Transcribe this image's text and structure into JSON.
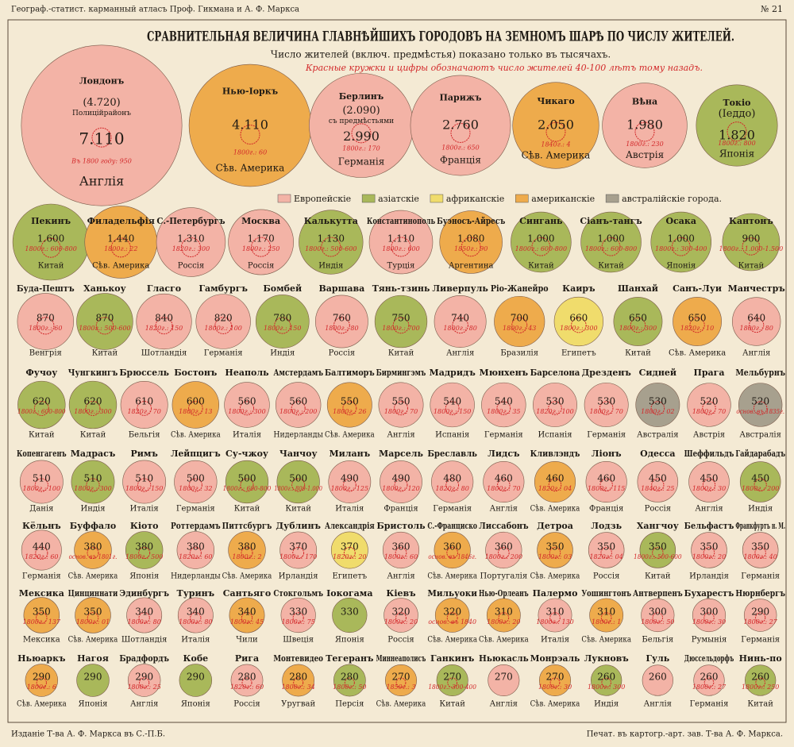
{
  "header": {
    "left": "Географ.-статист. карманный атласъ Проф. Гикмана и А. Ф. Маркса",
    "right": "№ 21",
    "title": "СРАВНИТЕЛЬНАЯ ВЕЛИЧИНА ГЛАВНѢЙШИХЪ ГОРОДОВЪ НА ЗЕМНОМЪ ШАРѢ ПО ЧИСЛУ ЖИТЕЛЕЙ.",
    "subtitle": "Число жителей (включ. предмѣстья) показано только въ тысячахъ.",
    "note": "Красные кружки и цифры обозначаютъ число жителей 40-100 лѣтъ тому назадъ."
  },
  "legend": [
    {
      "label": "Европейскiе",
      "color": "#f3b3a6"
    },
    {
      "label": "азiатскiе",
      "color": "#a9b85a"
    },
    {
      "label": "африканскiе",
      "color": "#f0dc6c"
    },
    {
      "label": "американскiе",
      "color": "#eeab4c"
    },
    {
      "label": "австралiйскiе города.",
      "color": "#a7a08e"
    }
  ],
  "rows": [
    [
      {
        "name": "Лондонъ",
        "pop": 7110,
        "pop_label": "7.110",
        "extra": [
          "(4.720)",
          "Полицiйрайонъ"
        ],
        "old": "Въ 1800 году: 950",
        "country": "Англiя",
        "group": 0
      },
      {
        "name": "Нью-Iоркъ",
        "pop": 4110,
        "pop_label": "4.110",
        "old": "1800г.: 60",
        "country": "Сѣв. Америка",
        "group": 3
      },
      {
        "name": "Берлинъ",
        "pop": 2990,
        "pop_label": "2.990",
        "extra": [
          "(2.090)",
          "съ предмѣстьями"
        ],
        "old": "1800г.: 170",
        "country": "Германiя",
        "group": 0
      },
      {
        "name": "Парижъ",
        "pop": 2760,
        "pop_label": "2.760",
        "old": "1800г.: 650",
        "country": "Францiя",
        "group": 0
      },
      {
        "name": "Чикаго",
        "pop": 2050,
        "pop_label": "2.050",
        "old": "1840г.: 4",
        "country": "Сѣв. Америка",
        "group": 3
      },
      {
        "name": "Вѣна",
        "pop": 1980,
        "pop_label": "1.980",
        "old": "1800г.: 230",
        "country": "Австрiя",
        "group": 0
      },
      {
        "name": "Токiо",
        "pop": 1820,
        "pop_label": "1.820",
        "extra": [
          "(Iеддо)"
        ],
        "old": "1800г.: 800",
        "country": "Японiя",
        "group": 1
      }
    ],
    [
      {
        "name": "Пекинъ",
        "pop": 1600,
        "pop_label": "1.600",
        "old": "1800г.: 600-800",
        "country": "Китай",
        "group": 1
      },
      {
        "name": "Филадельфiя",
        "pop": 1440,
        "pop_label": "1.440",
        "old": "1800г.: 22",
        "country": "Сѣв. Америка",
        "group": 3
      },
      {
        "name": "С.-Петербургъ",
        "pop": 1310,
        "pop_label": "1.310",
        "old": "1820г.: 300",
        "country": "Россiя",
        "group": 0
      },
      {
        "name": "Москва",
        "pop": 1170,
        "pop_label": "1.170",
        "old": "1800г.: 250",
        "country": "Россiя",
        "group": 0
      },
      {
        "name": "Калькутта",
        "pop": 1130,
        "pop_label": "1.130",
        "old": "1800г.: 500-600",
        "country": "Индiя",
        "group": 1
      },
      {
        "name": "Константинополь",
        "pop": 1110,
        "pop_label": "1.110",
        "old": "1800г.: 600",
        "country": "Турцiя",
        "group": 0
      },
      {
        "name": "Буэносъ-Айресъ",
        "pop": 1080,
        "pop_label": "1.080",
        "old": "1850г.: 90",
        "country": "Аргентина",
        "group": 3
      },
      {
        "name": "Сингань",
        "pop": 1000,
        "pop_label": "1.000",
        "old": "1800г.: 600-800",
        "country": "Китай",
        "group": 1
      },
      {
        "name": "Сiанъ-тангъ",
        "pop": 1000,
        "pop_label": "1.000",
        "old": "1800г.: 600-800",
        "country": "Китай",
        "group": 1
      },
      {
        "name": "Осака",
        "pop": 1000,
        "pop_label": "1.000",
        "old": "1800г.: 300-400",
        "country": "Японiя",
        "group": 1
      },
      {
        "name": "Кантонъ",
        "pop": 900,
        "old": "1800г.: 1.000-1.500",
        "country": "Китай",
        "group": 1
      }
    ],
    [
      {
        "name": "Буда-Пештъ",
        "pop": 870,
        "old": "1800г.: 60",
        "country": "Венгрiя",
        "group": 0
      },
      {
        "name": "Ханькоу",
        "pop": 870,
        "old": "1800г.: 500-600",
        "country": "Китай",
        "group": 1
      },
      {
        "name": "Гласго",
        "pop": 840,
        "old": "1820г.: 150",
        "country": "Шотландiя",
        "group": 0
      },
      {
        "name": "Гамбургъ",
        "pop": 820,
        "old": "1800г.: 100",
        "country": "Германiя",
        "group": 0
      },
      {
        "name": "Бомбей",
        "pop": 780,
        "old": "1800г.: 150",
        "country": "Индiя",
        "group": 1
      },
      {
        "name": "Варшава",
        "pop": 760,
        "old": "1800г.: 80",
        "country": "Россiя",
        "group": 0
      },
      {
        "name": "Тянь-тзинь",
        "pop": 750,
        "old": "1800г.: 700",
        "country": "Китай",
        "group": 1
      },
      {
        "name": "Ливерпуль",
        "pop": 740,
        "old": "1800г.: 80",
        "country": "Англiя",
        "group": 0
      },
      {
        "name": "Рiо-Жанейро",
        "pop": 700,
        "old": "1800г.: 43",
        "country": "Бразилiя",
        "group": 3
      },
      {
        "name": "Каиръ",
        "pop": 660,
        "old": "1800г.: 300",
        "country": "Египетъ",
        "group": 2
      },
      {
        "name": "Шанхай",
        "pop": 650,
        "old": "1800г.: 300",
        "country": "Китай",
        "group": 1
      },
      {
        "name": "Санъ-Луи",
        "pop": 650,
        "old": "1820г.: 10",
        "country": "Сѣв. Америка",
        "group": 3
      },
      {
        "name": "Манчестръ",
        "pop": 640,
        "old": "1800г.: 80",
        "country": "Англiя",
        "group": 0
      }
    ],
    [
      {
        "name": "Фучоу",
        "pop": 620,
        "old": "1800г.: 600-800",
        "country": "Китай",
        "group": 1
      },
      {
        "name": "Чунгкингъ",
        "pop": 620,
        "old": "1800г.: 300",
        "country": "Китай",
        "group": 1
      },
      {
        "name": "Брюссель",
        "pop": 610,
        "old": "1820г.: 70",
        "country": "Бельгiя",
        "group": 0
      },
      {
        "name": "Бостонъ",
        "pop": 600,
        "old": "1800г.: 13",
        "country": "Сѣв. Америка",
        "group": 3
      },
      {
        "name": "Неаполь",
        "pop": 560,
        "old": "1800г.: 300",
        "country": "Италiя",
        "group": 0
      },
      {
        "name": "Амстердамъ",
        "pop": 560,
        "old": "1800г.: 200",
        "country": "Нидерланды",
        "group": 0
      },
      {
        "name": "Балтиморъ",
        "pop": 550,
        "old": "1800г.: 26",
        "country": "Сѣв. Америка",
        "group": 3
      },
      {
        "name": "Бирмингэмъ",
        "pop": 550,
        "old": "1800г.: 70",
        "country": "Англiя",
        "group": 0
      },
      {
        "name": "Мадридъ",
        "pop": 540,
        "old": "1800г.: 150",
        "country": "Испанiя",
        "group": 0
      },
      {
        "name": "Мюнхенъ",
        "pop": 540,
        "old": "1800г.: 35",
        "country": "Германiя",
        "group": 0
      },
      {
        "name": "Барселона",
        "pop": 530,
        "old": "1820г.: 100",
        "country": "Испанiя",
        "group": 0
      },
      {
        "name": "Дрезденъ",
        "pop": 530,
        "old": "1800г.: 70",
        "country": "Германiя",
        "group": 0
      },
      {
        "name": "Сидней",
        "pop": 530,
        "old": "1800г.: 02",
        "country": "Австралiя",
        "group": 4
      },
      {
        "name": "Прага",
        "pop": 520,
        "old": "1800г.: 70",
        "country": "Австрiя",
        "group": 0
      },
      {
        "name": "Мельбурнъ",
        "pop": 520,
        "old": "основ. въ 1835г.",
        "country": "Австралiя",
        "group": 4
      }
    ],
    [
      {
        "name": "Копенгагенъ",
        "pop": 510,
        "old": "1800г.: 100",
        "country": "Данiя",
        "group": 0
      },
      {
        "name": "Мадрасъ",
        "pop": 510,
        "old": "1800г.: 300",
        "country": "Индiя",
        "group": 1
      },
      {
        "name": "Римъ",
        "pop": 510,
        "old": "1800г.: 150",
        "country": "Италiя",
        "group": 0
      },
      {
        "name": "Лейпцигъ",
        "pop": 500,
        "old": "1800г.: 32",
        "country": "Германiя",
        "group": 0
      },
      {
        "name": "Су-чжоу",
        "pop": 500,
        "old": "1800г.: 600-800",
        "country": "Китай",
        "group": 1
      },
      {
        "name": "Чанчоу",
        "pop": 500,
        "old": "1800г.: 800-1.000",
        "country": "Китай",
        "group": 1
      },
      {
        "name": "Миланъ",
        "pop": 490,
        "old": "1800г.: 125",
        "country": "Италiя",
        "group": 0
      },
      {
        "name": "Марсель",
        "pop": 490,
        "old": "1800г.: 120",
        "country": "Францiя",
        "group": 0
      },
      {
        "name": "Бреславль",
        "pop": 480,
        "old": "1820г.: 80",
        "country": "Германiя",
        "group": 0
      },
      {
        "name": "Лидсъ",
        "pop": 460,
        "old": "1800г.: 70",
        "country": "Англiя",
        "group": 0
      },
      {
        "name": "Кливлэндъ",
        "pop": 460,
        "old": "1820г.: 04",
        "country": "Сѣв. Америка",
        "group": 3
      },
      {
        "name": "Лiонъ",
        "pop": 460,
        "old": "1800г.: 115",
        "country": "Францiя",
        "group": 0
      },
      {
        "name": "Одесса",
        "pop": 450,
        "old": "1840г.: 25",
        "country": "Россiя",
        "group": 0
      },
      {
        "name": "Шеффильдъ",
        "pop": 450,
        "old": "1800г.: 30",
        "country": "Англiя",
        "group": 0
      },
      {
        "name": "Гайдарабадъ",
        "pop": 450,
        "old": "1800г.: 200",
        "country": "Индiя",
        "group": 1
      }
    ],
    [
      {
        "name": "Кёльнъ",
        "pop": 440,
        "old": "1820г.: 60",
        "country": "Германiя",
        "group": 0
      },
      {
        "name": "Буффало",
        "pop": 380,
        "old": "основ. въ 1801г.",
        "country": "Сѣв. Америка",
        "group": 3
      },
      {
        "name": "Кiото",
        "pop": 380,
        "old": "1800г.: 500",
        "country": "Японiя",
        "group": 1
      },
      {
        "name": "Роттердамъ",
        "pop": 380,
        "old": "1820г.: 60",
        "country": "Нидерланды",
        "group": 0
      },
      {
        "name": "Питтсбургъ",
        "pop": 380,
        "old": "1800г.: 2",
        "country": "Сѣв. Америка",
        "group": 3
      },
      {
        "name": "Дублинъ",
        "pop": 370,
        "old": "1800г.: 170",
        "country": "Ирландiя",
        "group": 0
      },
      {
        "name": "Александрiя",
        "pop": 370,
        "old": "1820г.: 20",
        "country": "Египетъ",
        "group": 2
      },
      {
        "name": "Бристоль",
        "pop": 360,
        "old": "1800г.: 60",
        "country": "Англiя",
        "group": 0
      },
      {
        "name": "С.-Франциско",
        "pop": 360,
        "old": "основ. въ 1846г.",
        "country": "Сѣв. Америка",
        "group": 3
      },
      {
        "name": "Лиссабонъ",
        "pop": 360,
        "old": "1800г.: 200",
        "country": "Португалiя",
        "group": 0
      },
      {
        "name": "Детроа",
        "pop": 350,
        "old": "1800г.: 03",
        "country": "Сѣв. Америка",
        "group": 3
      },
      {
        "name": "Лодзь",
        "pop": 350,
        "old": "1820г.: 04",
        "country": "Россiя",
        "group": 0
      },
      {
        "name": "Хангчоу",
        "pop": 350,
        "old": "1800г.: 500-600",
        "country": "Китай",
        "group": 1
      },
      {
        "name": "Бельфастъ",
        "pop": 350,
        "old": "1800г.: 20",
        "country": "Ирландiя",
        "group": 0
      },
      {
        "name": "Франкфуртъ н. М.",
        "pop": 350,
        "old": "1800г.: 40",
        "country": "Германiя",
        "group": 0
      }
    ],
    [
      {
        "name": "Мексика",
        "pop": 350,
        "old": "1800г.: 137",
        "country": "Мексика",
        "group": 3
      },
      {
        "name": "Цинциннати",
        "pop": 350,
        "old": "1800г.: 01",
        "country": "Сѣв. Америка",
        "group": 3
      },
      {
        "name": "Эдинбургъ",
        "pop": 340,
        "old": "1800г.: 80",
        "country": "Шотландiя",
        "group": 0
      },
      {
        "name": "Туринъ",
        "pop": 340,
        "old": "1800г.: 80",
        "country": "Италiя",
        "group": 0
      },
      {
        "name": "Сантьяго",
        "pop": 340,
        "old": "1800г.: 45",
        "country": "Чили",
        "group": 3
      },
      {
        "name": "Стокгольмъ",
        "pop": 330,
        "old": "1800г.: 75",
        "country": "Швецiя",
        "group": 0
      },
      {
        "name": "Iокогама",
        "pop": 330,
        "country": "Японiя",
        "group": 1
      },
      {
        "name": "Кiевъ",
        "pop": 320,
        "old": "1800г.: 20",
        "country": "Россiя",
        "group": 0
      },
      {
        "name": "Мильуоки",
        "pop": 320,
        "old": "основ. въ 1840",
        "country": "Сѣв. Америка",
        "group": 3
      },
      {
        "name": "Нью-Орлеанъ",
        "pop": 310,
        "old": "1800г.: 20",
        "country": "Сѣв. Америка",
        "group": 3
      },
      {
        "name": "Палермо",
        "pop": 310,
        "old": "1800г.: 130",
        "country": "Италiя",
        "group": 0
      },
      {
        "name": "Уошингтонъ",
        "pop": 310,
        "old": "1800г.: 1",
        "country": "Сѣв. Америка",
        "group": 3
      },
      {
        "name": "Антверпенъ",
        "pop": 300,
        "old": "1800г.: 50",
        "country": "Бельгiя",
        "group": 0
      },
      {
        "name": "Бухарестъ",
        "pop": 300,
        "old": "1800г.: 30",
        "country": "Румынiя",
        "group": 0
      },
      {
        "name": "Нюрнбергъ",
        "pop": 290,
        "old": "1800г.: 27",
        "country": "Германiя",
        "group": 0
      }
    ],
    [
      {
        "name": "Ньюаркъ",
        "pop": 290,
        "old": "1800г.: 6",
        "country": "Сѣв. Америка",
        "group": 3
      },
      {
        "name": "Нагоя",
        "pop": 290,
        "country": "Японiя",
        "group": 1
      },
      {
        "name": "Брадфордъ",
        "pop": 290,
        "old": "1800г.: 25",
        "country": "Англiя",
        "group": 0
      },
      {
        "name": "Кобе",
        "pop": 290,
        "country": "Японiя",
        "group": 1
      },
      {
        "name": "Рига",
        "pop": 280,
        "old": "1820г.: 60",
        "country": "Россiя",
        "group": 0
      },
      {
        "name": "Монтевидео",
        "pop": 280,
        "old": "1800г.: 34",
        "country": "Уругвай",
        "group": 3
      },
      {
        "name": "Тегеранъ",
        "pop": 280,
        "old": "1800г.: 50",
        "country": "Персiя",
        "group": 1
      },
      {
        "name": "Миннеаполисъ",
        "pop": 270,
        "old": "1850г.: 3",
        "country": "Сѣв. Америка",
        "group": 3
      },
      {
        "name": "Ганкинъ",
        "pop": 270,
        "old": "1800г.: 300-400",
        "country": "Китай",
        "group": 1
      },
      {
        "name": "Ньюкасль",
        "pop": 270,
        "country": "Англiя",
        "group": 0
      },
      {
        "name": "Монрэаль",
        "pop": 270,
        "old": "1800г.: 30",
        "country": "Сѣв. Америка",
        "group": 3
      },
      {
        "name": "Лукновъ",
        "pop": 260,
        "old": "1800г.: 300",
        "country": "Индiя",
        "group": 1
      },
      {
        "name": "Гуль",
        "pop": 260,
        "country": "Англiя",
        "group": 0
      },
      {
        "name": "Дюссельдорфъ",
        "pop": 260,
        "old": "1800г.: 27",
        "country": "Германiя",
        "group": 0
      },
      {
        "name": "Нинь-по",
        "pop": 260,
        "old": "1800г.: 250",
        "country": "Китай",
        "group": 1
      }
    ]
  ],
  "footer": {
    "left": "Изданiе Т-ва А. Ф. Маркса въ С.-П.Б.",
    "right": "Печат. въ картогр.-арт. зав. Т-ва А. Ф. Маркса."
  }
}
